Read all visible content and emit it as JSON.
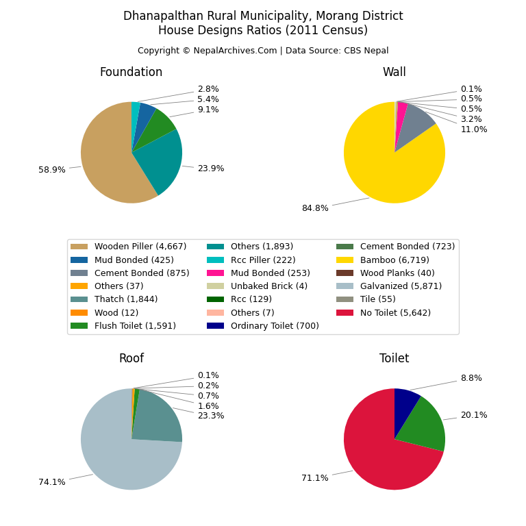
{
  "title": "Dhanapalthan Rural Municipality, Morang District\nHouse Designs Ratios (2011 Census)",
  "subtitle": "Copyright © NepalArchives.Com | Data Source: CBS Nepal",
  "legend": "center",
  "series": [
    {
      "name": "Wooden Piller (4,667)",
      "color": "#C8A060"
    },
    {
      "name": "Mud Bonded (425)",
      "color": "#1565A0"
    },
    {
      "name": "Cement Bonded (875)",
      "color": "#708090"
    },
    {
      "name": "Others (37)",
      "color": "#FFA500"
    },
    {
      "name": "Thatch (1,844)",
      "color": "#5A9090"
    },
    {
      "name": "Wood (12)",
      "color": "#FF8C00"
    },
    {
      "name": "Flush Toilet (1,591)",
      "color": "#228B22"
    },
    {
      "name": "Others (1,893)",
      "color": "#009090"
    },
    {
      "name": "Rcc Piller (222)",
      "color": "#00BEBE"
    },
    {
      "name": "Mud Bonded (253)",
      "color": "#FF1493"
    },
    {
      "name": "Unbaked Brick (4)",
      "color": "#D0D0A0"
    },
    {
      "name": "Rcc (129)",
      "color": "#006400"
    },
    {
      "name": "Others (7)",
      "color": "#FFB6A0"
    },
    {
      "name": "Ordinary Toilet (700)",
      "color": "#00008B"
    },
    {
      "name": "Cement Bonded (723)",
      "color": "#4A7A4A"
    },
    {
      "name": "Bamboo (6,719)",
      "color": "#FFD700"
    },
    {
      "name": "Wood Planks (40)",
      "color": "#6B3A2A"
    },
    {
      "name": "Galvanized (5,871)",
      "color": "#A8BEC8"
    },
    {
      "name": "Tile (55)",
      "color": "#909080"
    },
    {
      "name": "No Toilet (5,642)",
      "color": "#DC143C"
    }
  ],
  "chart_data": [
    {
      "type": "pie",
      "title": "Foundation",
      "values": [
        58.9,
        23.9,
        9.1,
        5.4,
        2.8
      ],
      "value_labels": [
        "58.9%",
        "23.9%",
        "9.1%",
        "5.4%",
        "2.8%"
      ],
      "colors": [
        "#C8A060",
        "#009090",
        "#228B22",
        "#1565A0",
        "#00BEBE"
      ],
      "data_labels": true
    },
    {
      "type": "pie",
      "title": "Wall",
      "values": [
        84.8,
        11.0,
        3.2,
        0.5,
        0.5,
        0.1
      ],
      "value_labels": [
        "84.8%",
        "11.0%",
        "3.2%",
        "0.5%",
        "0.5%",
        "0.1%"
      ],
      "colors": [
        "#FFD700",
        "#708090",
        "#FF1493",
        "#C8A050",
        "#D0D0A0",
        "#E8E8E8"
      ],
      "data_labels": true
    },
    {
      "type": "pie",
      "title": "Roof",
      "values": [
        74.1,
        23.3,
        1.6,
        0.7,
        0.2,
        0.1
      ],
      "value_labels": [
        "74.1%",
        "23.3%",
        "1.6%",
        "0.7%",
        "0.2%",
        "0.1%"
      ],
      "colors": [
        "#A8BEC8",
        "#5A9090",
        "#228B22",
        "#FFA500",
        "#6B3A2A",
        "#C0C0C0"
      ],
      "data_labels": true
    },
    {
      "type": "pie",
      "title": "Toilet",
      "values": [
        71.1,
        20.1,
        8.8
      ],
      "value_labels": [
        "71.1%",
        "20.1%",
        "8.8%"
      ],
      "colors": [
        "#DC143C",
        "#228B22",
        "#00008B"
      ],
      "data_labels": true
    }
  ]
}
